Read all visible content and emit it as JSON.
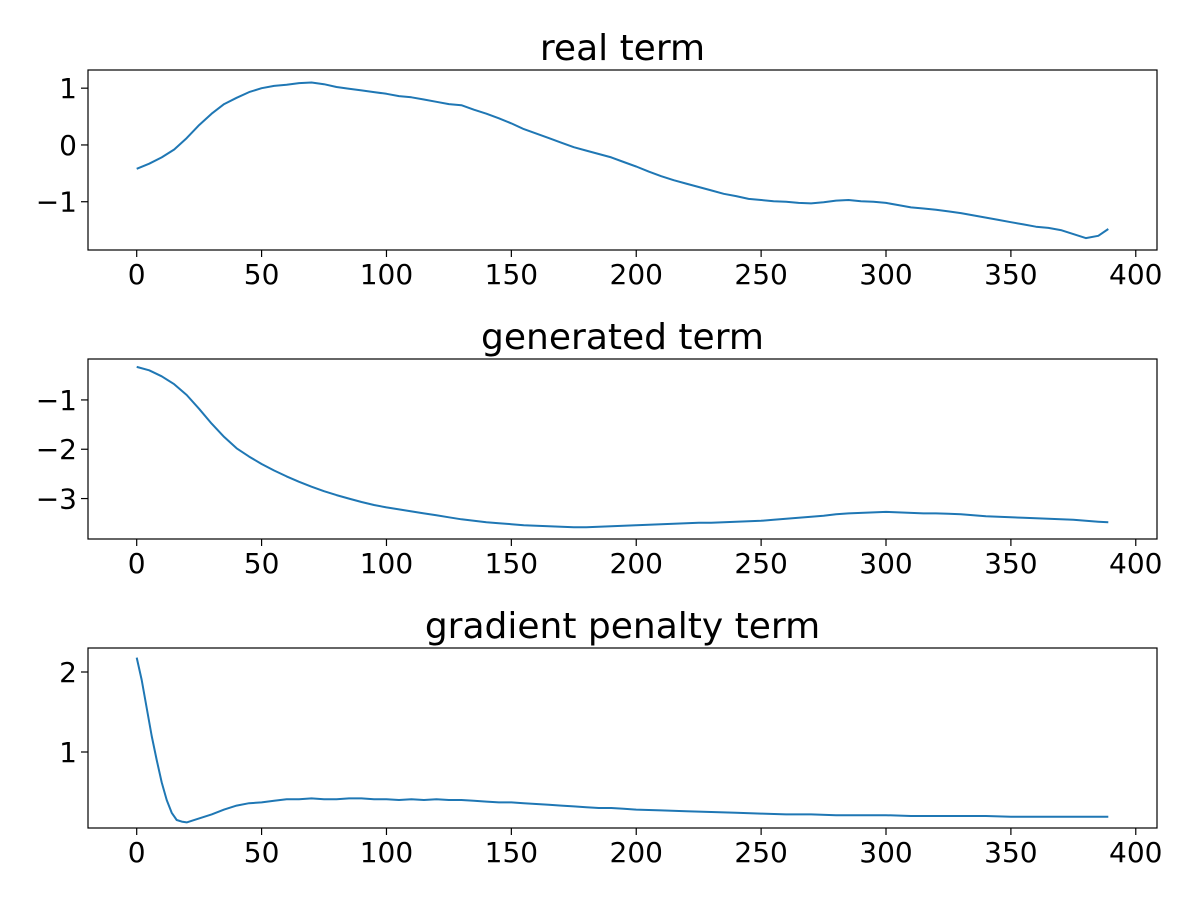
{
  "chart_data": [
    {
      "type": "line",
      "title": "real term",
      "xlim": [
        -19.5,
        408.5
      ],
      "ylim": [
        -1.85,
        1.32
      ],
      "xticks": [
        0,
        50,
        100,
        150,
        200,
        250,
        300,
        350,
        400
      ],
      "xtick_labels": [
        "0",
        "50",
        "100",
        "150",
        "200",
        "250",
        "300",
        "350",
        "400"
      ],
      "yticks": [
        1,
        0,
        -1
      ],
      "ytick_labels": [
        "1",
        "0",
        "−1"
      ],
      "series": [
        {
          "color": "#1f77b4",
          "x": [
            0,
            5,
            10,
            15,
            20,
            25,
            30,
            35,
            40,
            45,
            50,
            55,
            60,
            65,
            70,
            75,
            80,
            85,
            90,
            95,
            100,
            105,
            110,
            115,
            120,
            125,
            130,
            135,
            140,
            145,
            150,
            155,
            160,
            165,
            170,
            175,
            180,
            185,
            190,
            195,
            200,
            205,
            210,
            215,
            220,
            225,
            230,
            235,
            240,
            245,
            250,
            255,
            260,
            265,
            270,
            275,
            280,
            285,
            290,
            295,
            300,
            305,
            310,
            315,
            320,
            325,
            330,
            335,
            340,
            345,
            350,
            355,
            360,
            365,
            370,
            375,
            380,
            385,
            389
          ],
          "y": [
            -0.42,
            -0.33,
            -0.22,
            -0.08,
            0.12,
            0.35,
            0.55,
            0.72,
            0.83,
            0.93,
            1.0,
            1.04,
            1.06,
            1.09,
            1.1,
            1.07,
            1.02,
            0.99,
            0.96,
            0.93,
            0.9,
            0.86,
            0.84,
            0.8,
            0.76,
            0.72,
            0.7,
            0.62,
            0.55,
            0.47,
            0.38,
            0.28,
            0.2,
            0.12,
            0.04,
            -0.04,
            -0.1,
            -0.16,
            -0.22,
            -0.3,
            -0.38,
            -0.47,
            -0.55,
            -0.62,
            -0.68,
            -0.74,
            -0.8,
            -0.86,
            -0.9,
            -0.95,
            -0.97,
            -0.99,
            -1.0,
            -1.02,
            -1.03,
            -1.01,
            -0.98,
            -0.97,
            -0.99,
            -1.0,
            -1.02,
            -1.06,
            -1.1,
            -1.12,
            -1.14,
            -1.17,
            -1.2,
            -1.24,
            -1.28,
            -1.32,
            -1.36,
            -1.4,
            -1.44,
            -1.46,
            -1.5,
            -1.57,
            -1.64,
            -1.6,
            -1.48
          ]
        }
      ]
    },
    {
      "type": "line",
      "title": "generated term",
      "xlim": [
        -19.5,
        408.5
      ],
      "ylim": [
        -3.82,
        -0.17
      ],
      "xticks": [
        0,
        50,
        100,
        150,
        200,
        250,
        300,
        350,
        400
      ],
      "xtick_labels": [
        "0",
        "50",
        "100",
        "150",
        "200",
        "250",
        "300",
        "350",
        "400"
      ],
      "yticks": [
        -1,
        -2,
        -3
      ],
      "ytick_labels": [
        "−1",
        "−2",
        "−3"
      ],
      "series": [
        {
          "color": "#1f77b4",
          "x": [
            0,
            5,
            10,
            15,
            20,
            25,
            30,
            35,
            40,
            45,
            50,
            55,
            60,
            65,
            70,
            75,
            80,
            85,
            90,
            95,
            100,
            105,
            110,
            115,
            120,
            125,
            130,
            135,
            140,
            145,
            150,
            155,
            160,
            165,
            170,
            175,
            180,
            185,
            190,
            195,
            200,
            205,
            210,
            215,
            220,
            225,
            230,
            235,
            240,
            245,
            250,
            255,
            260,
            265,
            270,
            275,
            280,
            285,
            290,
            295,
            300,
            305,
            310,
            315,
            320,
            325,
            330,
            335,
            340,
            345,
            350,
            355,
            360,
            365,
            370,
            375,
            380,
            385,
            389
          ],
          "y": [
            -0.33,
            -0.4,
            -0.52,
            -0.68,
            -0.9,
            -1.18,
            -1.48,
            -1.75,
            -1.98,
            -2.15,
            -2.3,
            -2.43,
            -2.55,
            -2.66,
            -2.76,
            -2.85,
            -2.93,
            -3.0,
            -3.07,
            -3.13,
            -3.18,
            -3.22,
            -3.26,
            -3.3,
            -3.34,
            -3.38,
            -3.42,
            -3.45,
            -3.48,
            -3.5,
            -3.52,
            -3.54,
            -3.55,
            -3.56,
            -3.57,
            -3.58,
            -3.58,
            -3.57,
            -3.56,
            -3.55,
            -3.54,
            -3.53,
            -3.52,
            -3.51,
            -3.5,
            -3.49,
            -3.49,
            -3.48,
            -3.47,
            -3.46,
            -3.45,
            -3.43,
            -3.41,
            -3.39,
            -3.37,
            -3.35,
            -3.32,
            -3.3,
            -3.29,
            -3.28,
            -3.27,
            -3.28,
            -3.29,
            -3.3,
            -3.3,
            -3.31,
            -3.32,
            -3.34,
            -3.36,
            -3.37,
            -3.38,
            -3.39,
            -3.4,
            -3.41,
            -3.42,
            -3.43,
            -3.45,
            -3.47,
            -3.48
          ]
        }
      ]
    },
    {
      "type": "line",
      "title": "gradient penalty term",
      "xlim": [
        -19.5,
        408.5
      ],
      "ylim": [
        0.05,
        2.3
      ],
      "xticks": [
        0,
        50,
        100,
        150,
        200,
        250,
        300,
        350,
        400
      ],
      "xtick_labels": [
        "0",
        "50",
        "100",
        "150",
        "200",
        "250",
        "300",
        "350",
        "400"
      ],
      "yticks": [
        2,
        1
      ],
      "ytick_labels": [
        "2",
        "1"
      ],
      "series": [
        {
          "color": "#1f77b4",
          "x": [
            0,
            2,
            4,
            6,
            8,
            10,
            12,
            14,
            16,
            18,
            20,
            22,
            25,
            30,
            35,
            40,
            45,
            50,
            55,
            60,
            65,
            70,
            75,
            80,
            85,
            90,
            95,
            100,
            105,
            110,
            115,
            120,
            125,
            130,
            135,
            140,
            145,
            150,
            155,
            160,
            165,
            170,
            175,
            180,
            185,
            190,
            195,
            200,
            210,
            220,
            230,
            240,
            250,
            260,
            270,
            280,
            290,
            300,
            310,
            320,
            330,
            340,
            350,
            360,
            370,
            380,
            389
          ],
          "y": [
            2.18,
            1.9,
            1.55,
            1.2,
            0.9,
            0.62,
            0.4,
            0.24,
            0.15,
            0.13,
            0.12,
            0.14,
            0.17,
            0.22,
            0.28,
            0.33,
            0.36,
            0.37,
            0.39,
            0.41,
            0.41,
            0.42,
            0.41,
            0.41,
            0.42,
            0.42,
            0.41,
            0.41,
            0.4,
            0.41,
            0.4,
            0.41,
            0.4,
            0.4,
            0.39,
            0.38,
            0.37,
            0.37,
            0.36,
            0.35,
            0.34,
            0.33,
            0.32,
            0.31,
            0.3,
            0.3,
            0.29,
            0.28,
            0.27,
            0.26,
            0.25,
            0.24,
            0.23,
            0.22,
            0.22,
            0.21,
            0.21,
            0.21,
            0.2,
            0.2,
            0.2,
            0.2,
            0.19,
            0.19,
            0.19,
            0.19,
            0.19
          ]
        }
      ]
    }
  ]
}
